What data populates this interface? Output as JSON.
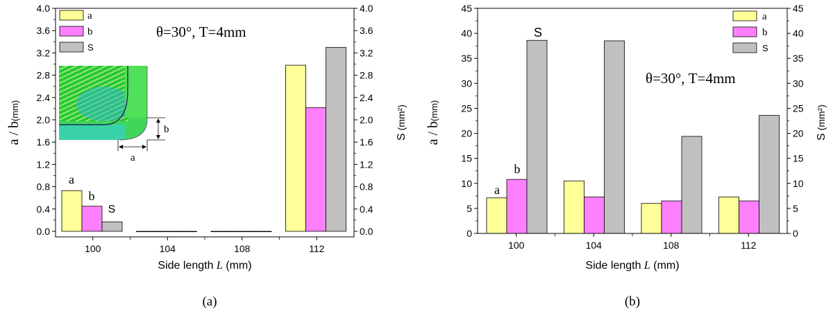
{
  "chart_data": [
    {
      "type": "bar",
      "panel_label": "(a)",
      "categories": [
        "100",
        "104",
        "108",
        "112"
      ],
      "series": [
        {
          "name": "a",
          "axis": "left",
          "color": "#ffff99",
          "values": [
            0.73,
            0.0,
            0.0,
            2.98
          ]
        },
        {
          "name": "b",
          "axis": "left",
          "color": "#ff80ff",
          "values": [
            0.45,
            0.0,
            0.0,
            2.22
          ]
        },
        {
          "name": "S",
          "axis": "right",
          "color": "#c0c0c0",
          "values": [
            0.17,
            0.0,
            0.0,
            3.3
          ]
        }
      ],
      "xlabel_prefix": "Side length ",
      "xlabel_var": "L",
      "xlabel_suffix": " (mm)",
      "ylabel_left": "a / b",
      "ylabel_left_unit": "(mm)",
      "ylabel_right": "S",
      "ylabel_right_unit": "(mm²)",
      "ylim": [
        -0.1,
        4.0
      ],
      "yticks": [
        "0.0",
        "0.4",
        "0.8",
        "1.2",
        "1.6",
        "2.0",
        "2.4",
        "2.8",
        "3.2",
        "3.6",
        "4.0"
      ],
      "ytick_values": [
        0,
        0.4,
        0.8,
        1.2,
        1.6,
        2.0,
        2.4,
        2.8,
        3.2,
        3.6,
        4.0
      ],
      "annotation": "θ=30°, T=4mm",
      "legend_position": "top-left",
      "bar_labels": [
        "a",
        "b",
        "S"
      ],
      "inset": {
        "label_a": "a",
        "label_b": "b"
      }
    },
    {
      "type": "bar",
      "panel_label": "(b)",
      "categories": [
        "100",
        "104",
        "108",
        "112"
      ],
      "series": [
        {
          "name": "a",
          "axis": "left",
          "color": "#ffff99",
          "values": [
            7.1,
            10.5,
            6.0,
            7.3
          ]
        },
        {
          "name": "b",
          "axis": "left",
          "color": "#ff80ff",
          "values": [
            10.8,
            7.3,
            6.5,
            6.5
          ]
        },
        {
          "name": "S",
          "axis": "right",
          "color": "#c0c0c0",
          "values": [
            38.6,
            38.5,
            19.4,
            23.6
          ]
        }
      ],
      "xlabel_prefix": "Side length ",
      "xlabel_var": "L",
      "xlabel_suffix": " (mm)",
      "ylabel_left": "a / b",
      "ylabel_left_unit": "(mm)",
      "ylabel_right": "S",
      "ylabel_right_unit": "(mm²)",
      "ylim": [
        0,
        45
      ],
      "yticks": [
        "0",
        "5",
        "10",
        "15",
        "20",
        "25",
        "30",
        "35",
        "40",
        "45"
      ],
      "ytick_values": [
        0,
        5,
        10,
        15,
        20,
        25,
        30,
        35,
        40,
        45
      ],
      "annotation": "θ=30°, T=4mm",
      "legend_position": "top-right",
      "bar_labels": [
        "a",
        "b",
        "S"
      ]
    }
  ]
}
